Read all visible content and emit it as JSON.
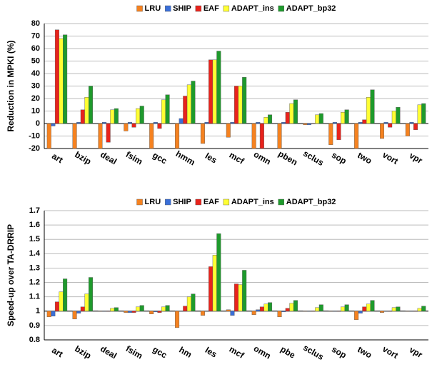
{
  "chart_data": [
    {
      "type": "bar",
      "ylabel": "Reduction in MPKI (%)",
      "categories": [
        "art",
        "bzip",
        "deal",
        "fsim",
        "gcc",
        "hmm",
        "les",
        "mcf",
        "omn",
        "pben",
        "sclus",
        "sop",
        "two",
        "vort",
        "vpr"
      ],
      "series": [
        {
          "name": "LRU",
          "color": "#f58220",
          "values": [
            -20,
            -20,
            -20,
            -6,
            -20,
            -20,
            -16,
            -11,
            -20,
            -20,
            -1,
            -17,
            -20,
            -12,
            -10
          ]
        },
        {
          "name": "SHIP",
          "color": "#3a6fd8",
          "values": [
            -2,
            1,
            1,
            1,
            1,
            4,
            1,
            1,
            1,
            1,
            -1,
            1,
            1,
            1,
            1
          ]
        },
        {
          "name": "EAF",
          "color": "#e8231c",
          "values": [
            75,
            11,
            -15,
            -3,
            -4,
            22,
            51,
            30,
            -20,
            9,
            0,
            -13,
            3,
            -3,
            -5
          ]
        },
        {
          "name": "ADAPT_ins",
          "color": "#ffff33",
          "values": [
            68,
            21,
            11,
            12,
            19,
            31,
            51,
            30,
            5,
            16,
            7,
            9,
            21,
            10,
            15
          ]
        },
        {
          "name": "ADAPT_bp32",
          "color": "#1e9a2c",
          "values": [
            71,
            30,
            12,
            14,
            23,
            34,
            58,
            37,
            7,
            19,
            8,
            11,
            27,
            13,
            16
          ]
        }
      ],
      "ylim": [
        -20,
        80
      ],
      "yticks": [
        -20,
        -10,
        0,
        10,
        20,
        30,
        40,
        50,
        60,
        70,
        80
      ],
      "baseline": 0,
      "grid": true
    },
    {
      "type": "bar",
      "ylabel": "Speed-up over TA-DRRIP",
      "categories": [
        "art",
        "bzip",
        "deal",
        "fsim",
        "gcc",
        "hm",
        "les",
        "mcf",
        "omn",
        "pbe",
        "sclus",
        "sop",
        "two",
        "vort",
        "vpr"
      ],
      "series": [
        {
          "name": "LRU",
          "color": "#f58220",
          "values": [
            0.96,
            0.945,
            1,
            0.99,
            0.98,
            0.885,
            0.97,
            1.01,
            0.975,
            0.96,
            1,
            1,
            0.94,
            0.99,
            1
          ]
        },
        {
          "name": "SHIP",
          "color": "#3a6fd8",
          "values": [
            0.965,
            0.985,
            1,
            0.99,
            0.995,
            1,
            1,
            0.97,
            1.01,
            0.995,
            1,
            1,
            0.985,
            1,
            1
          ]
        },
        {
          "name": "EAF",
          "color": "#e8231c",
          "values": [
            1.065,
            1.03,
            1,
            0.99,
            0.99,
            1.035,
            1.31,
            1.19,
            1.03,
            1.02,
            1,
            1,
            1.03,
            1,
            1
          ]
        },
        {
          "name": "ADAPT_ins",
          "color": "#ffff33",
          "values": [
            1.135,
            1.12,
            1.02,
            1.03,
            1.03,
            1.1,
            1.39,
            1.185,
            1.05,
            1.055,
            1.025,
            1.03,
            1.05,
            1.025,
            1.02
          ]
        },
        {
          "name": "ADAPT_bp32",
          "color": "#1e9a2c",
          "values": [
            1.225,
            1.235,
            1.025,
            1.04,
            1.04,
            1.12,
            1.54,
            1.285,
            1.06,
            1.075,
            1.045,
            1.045,
            1.075,
            1.03,
            1.035
          ]
        }
      ],
      "ylim": [
        0.8,
        1.7
      ],
      "yticks": [
        0.8,
        0.9,
        1,
        1.1,
        1.2,
        1.3,
        1.4,
        1.5,
        1.6,
        1.7
      ],
      "baseline": 1,
      "grid": true
    }
  ]
}
